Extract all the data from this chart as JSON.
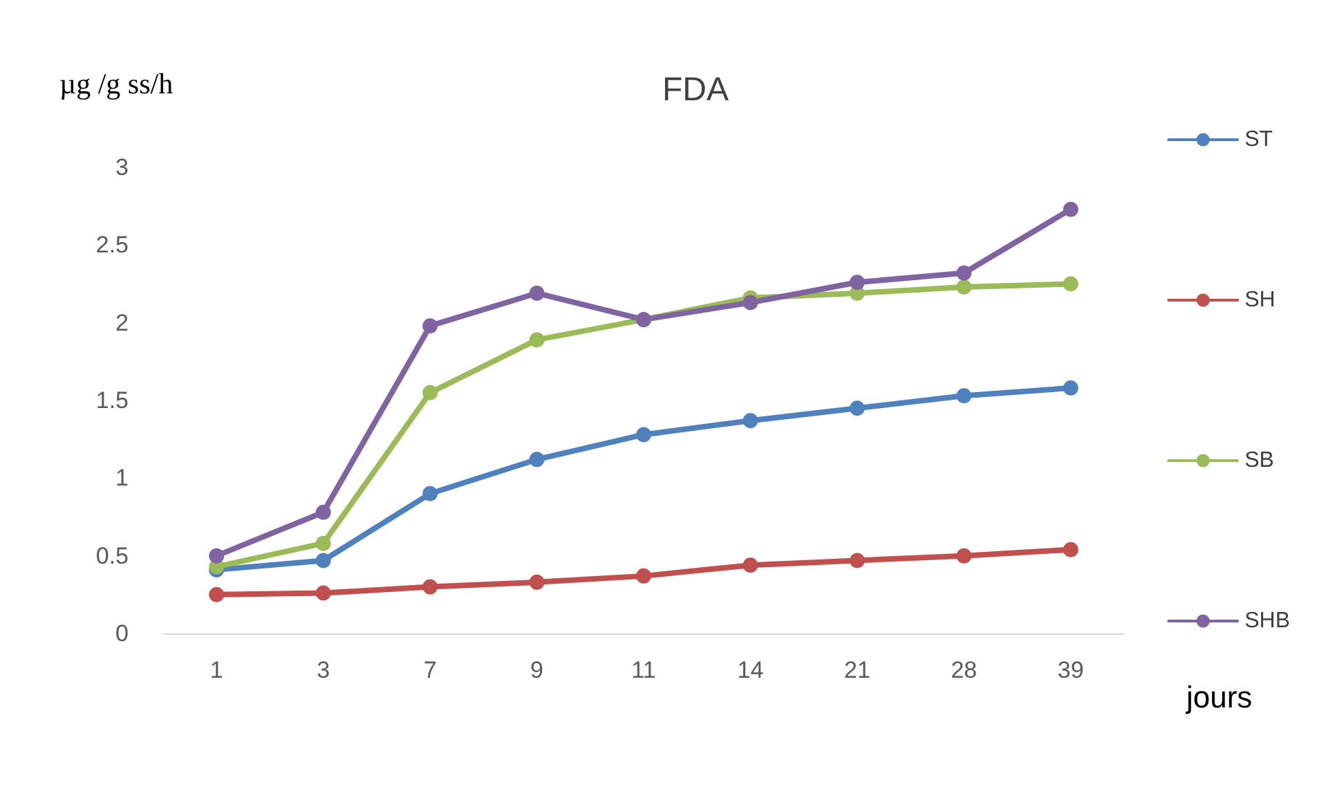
{
  "chart_data": {
    "type": "line",
    "title": "FDA",
    "ylabel": "µg /g ss/h",
    "xlabel": "jours",
    "categories": [
      "1",
      "3",
      "7",
      "9",
      "11",
      "14",
      "21",
      "28",
      "39"
    ],
    "series": [
      {
        "name": "ST",
        "color": "#4f81bd",
        "values": [
          0.41,
          0.47,
          0.9,
          1.12,
          1.28,
          1.37,
          1.45,
          1.53,
          1.58
        ]
      },
      {
        "name": "SH",
        "color": "#c0504d",
        "values": [
          0.25,
          0.26,
          0.3,
          0.33,
          0.37,
          0.44,
          0.47,
          0.5,
          0.54
        ]
      },
      {
        "name": "SB",
        "color": "#9bbb59",
        "values": [
          0.43,
          0.58,
          1.55,
          1.89,
          2.02,
          2.16,
          2.19,
          2.23,
          2.25
        ]
      },
      {
        "name": "SHB",
        "color": "#8064a2",
        "values": [
          0.5,
          0.78,
          1.98,
          2.19,
          2.02,
          2.13,
          2.26,
          2.32,
          2.73
        ]
      }
    ],
    "ylim": [
      0,
      3
    ],
    "yticks": [
      0,
      0.5,
      1,
      1.5,
      2,
      2.5,
      3
    ],
    "grid": false,
    "legend": "right",
    "marker": "circle",
    "line_style": "solid"
  }
}
